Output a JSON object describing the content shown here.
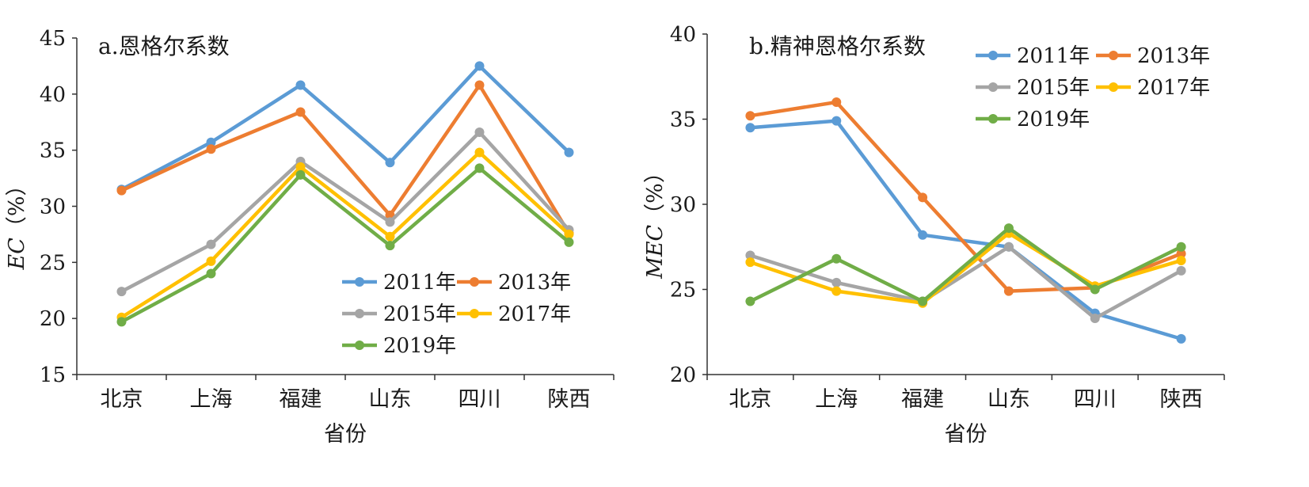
{
  "chart_data": [
    {
      "type": "line",
      "title": "a.恩格尔系数",
      "xlabel": "省份",
      "ylabel_main": "EC",
      "ylabel_unit": "（%）",
      "ylim": [
        15,
        45
      ],
      "yticks": [
        15,
        20,
        25,
        30,
        35,
        40,
        45
      ],
      "categories": [
        "北京",
        "上海",
        "福建",
        "山东",
        "四川",
        "陕西"
      ],
      "legend_position": "bottom-right",
      "series": [
        {
          "name": "2011年",
          "color": "#5b9bd5",
          "values": [
            31.5,
            35.7,
            40.8,
            33.9,
            42.5,
            34.8
          ]
        },
        {
          "name": "2013年",
          "color": "#ed7d31",
          "values": [
            31.4,
            35.1,
            38.4,
            29.2,
            40.8,
            27.6
          ]
        },
        {
          "name": "2015年",
          "color": "#a5a5a5",
          "values": [
            22.4,
            26.6,
            34.0,
            28.6,
            36.6,
            27.9
          ]
        },
        {
          "name": "2017年",
          "color": "#ffc000",
          "values": [
            20.1,
            25.1,
            33.5,
            27.3,
            34.8,
            27.5
          ]
        },
        {
          "name": "2019年",
          "color": "#70ad47",
          "values": [
            19.7,
            24.0,
            32.8,
            26.5,
            33.4,
            26.8
          ]
        }
      ]
    },
    {
      "type": "line",
      "title": "b.精神恩格尔系数",
      "xlabel": "省份",
      "ylabel_main": "MEC",
      "ylabel_unit": "（%）",
      "ylim": [
        20,
        40
      ],
      "yticks": [
        20,
        25,
        30,
        35,
        40
      ],
      "categories": [
        "北京",
        "上海",
        "福建",
        "山东",
        "四川",
        "陕西"
      ],
      "legend_position": "top-right",
      "series": [
        {
          "name": "2011年",
          "color": "#5b9bd5",
          "values": [
            34.5,
            34.9,
            28.2,
            27.5,
            23.6,
            22.1
          ]
        },
        {
          "name": "2013年",
          "color": "#ed7d31",
          "values": [
            35.2,
            36.0,
            30.4,
            24.9,
            25.1,
            27.1
          ]
        },
        {
          "name": "2015年",
          "color": "#a5a5a5",
          "values": [
            27.0,
            25.4,
            24.3,
            27.5,
            23.3,
            26.1
          ]
        },
        {
          "name": "2017年",
          "color": "#ffc000",
          "values": [
            26.6,
            24.9,
            24.2,
            28.3,
            25.2,
            26.7
          ]
        },
        {
          "name": "2019年",
          "color": "#70ad47",
          "values": [
            24.3,
            26.8,
            24.3,
            28.6,
            25.0,
            27.5
          ]
        }
      ]
    }
  ]
}
